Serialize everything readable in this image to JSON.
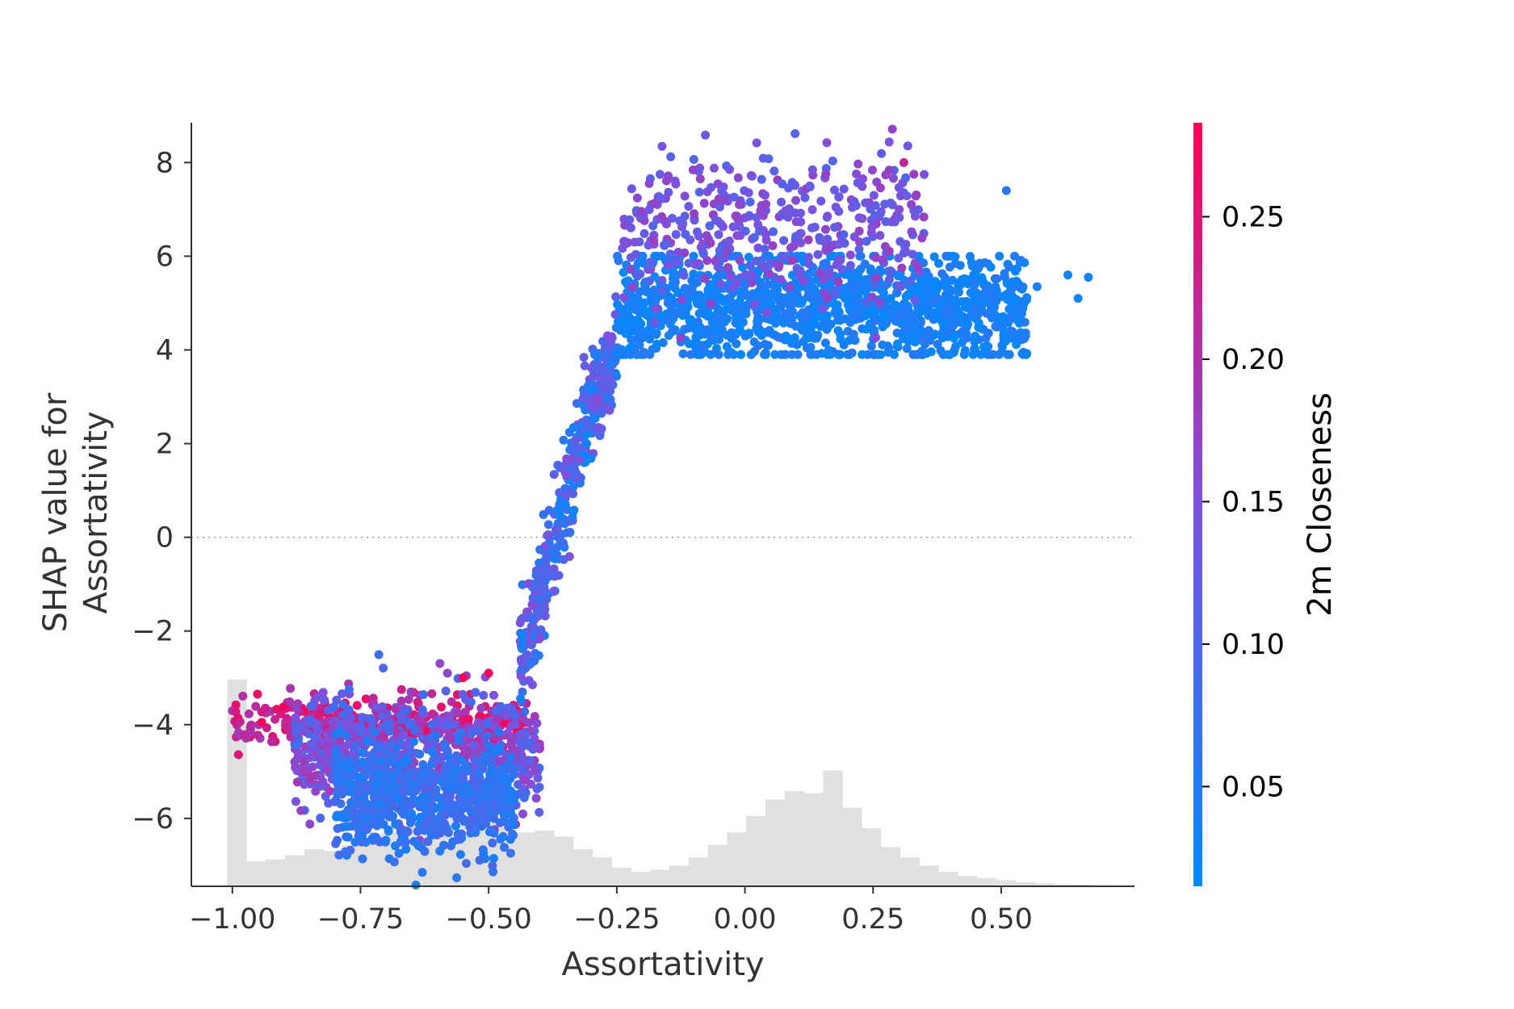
{
  "chart_data": {
    "type": "scatter",
    "title": "",
    "xlabel": "Assortativity",
    "ylabel_lines": [
      "SHAP value for",
      "Assortativity"
    ],
    "xlim": [
      -1.08,
      0.76
    ],
    "ylim": [
      -7.45,
      8.85
    ],
    "x_ticks": [
      -1.0,
      -0.75,
      -0.5,
      -0.25,
      0.0,
      0.25,
      0.5
    ],
    "x_tick_labels": [
      "−1.00",
      "−0.75",
      "−0.50",
      "−0.25",
      "0.00",
      "0.25",
      "0.50"
    ],
    "y_ticks": [
      8,
      6,
      4,
      2,
      0,
      -2,
      -4,
      -6
    ],
    "y_tick_labels": [
      "8",
      "6",
      "4",
      "2",
      "0",
      "−2",
      "−4",
      "−6"
    ],
    "zero_line": true,
    "grid": false,
    "colorbar": {
      "label": "2m Closeness",
      "range": [
        0.015,
        0.283
      ],
      "ticks": [
        0.05,
        0.1,
        0.15,
        0.2,
        0.25
      ],
      "tick_labels": [
        "0.05",
        "0.10",
        "0.15",
        "0.20",
        "0.25"
      ],
      "color_low": "#008afb",
      "color_mid": "#7b52e0",
      "color_high": "#ff0051"
    },
    "histogram": {
      "color": "#e0e0e0",
      "x_start": -1.01,
      "bin_width": 0.0375,
      "heights": [
        1.0,
        0.12,
        0.13,
        0.15,
        0.18,
        0.17,
        0.2,
        0.23,
        0.26,
        0.29,
        0.33,
        0.34,
        0.33,
        0.31,
        0.29,
        0.26,
        0.27,
        0.24,
        0.18,
        0.14,
        0.09,
        0.07,
        0.08,
        0.1,
        0.14,
        0.2,
        0.26,
        0.34,
        0.42,
        0.46,
        0.45,
        0.56,
        0.38,
        0.28,
        0.19,
        0.14,
        0.1,
        0.07,
        0.05,
        0.04,
        0.03,
        0.02,
        0.015,
        0.01,
        0.008,
        0.005,
        0.003
      ]
    },
    "point_groups": [
      {
        "name": "lower-red",
        "x_range": [
          -1.0,
          -0.42
        ],
        "y_center": -3.95,
        "y_spread": 0.25,
        "color_range": [
          0.19,
          0.28
        ],
        "count": 300
      },
      {
        "name": "lower-mixed",
        "x_range": [
          -0.88,
          -0.4
        ],
        "y_center": -4.6,
        "y_spread": 0.6,
        "color_range": [
          0.08,
          0.2
        ],
        "count": 700
      },
      {
        "name": "lower-blue",
        "x_range": [
          -0.8,
          -0.45
        ],
        "y_center": -5.6,
        "y_spread": 0.6,
        "color_range": [
          0.04,
          0.1
        ],
        "count": 650
      },
      {
        "name": "transition",
        "x_range": [
          -0.44,
          -0.25
        ],
        "y_center": 0.0,
        "y_spread": 0.8,
        "color_range": [
          0.03,
          0.16
        ],
        "count": 450
      },
      {
        "name": "upper-blue",
        "x_range": [
          -0.25,
          0.55
        ],
        "y_center": 4.9,
        "y_spread": 0.6,
        "color_range": [
          0.02,
          0.06
        ],
        "count": 1300
      },
      {
        "name": "upper-purple",
        "x_range": [
          -0.24,
          0.35
        ],
        "y_center": 6.6,
        "y_spread": 0.8,
        "color_range": [
          0.1,
          0.18
        ],
        "count": 420
      }
    ],
    "annotated_points": [
      {
        "x": -0.5,
        "y": -2.9,
        "c": 0.27
      },
      {
        "x": -0.55,
        "y": -3.0,
        "c": 0.28
      },
      {
        "x": -0.03,
        "y": 7.85,
        "c": 0.14
      },
      {
        "x": 0.31,
        "y": 8.0,
        "c": 0.22
      },
      {
        "x": 0.63,
        "y": 5.6,
        "c": 0.03
      },
      {
        "x": 0.65,
        "y": 5.1,
        "c": 0.03
      },
      {
        "x": 0.67,
        "y": 5.55,
        "c": 0.03
      },
      {
        "x": 0.57,
        "y": 5.35,
        "c": 0.04
      },
      {
        "x": 0.51,
        "y": 7.4,
        "c": 0.06
      },
      {
        "x": 0.52,
        "y": 4.25,
        "c": 0.04
      },
      {
        "x": -0.51,
        "y": -6.75,
        "c": 0.05
      },
      {
        "x": -0.57,
        "y": -6.5,
        "c": 0.06
      }
    ]
  }
}
